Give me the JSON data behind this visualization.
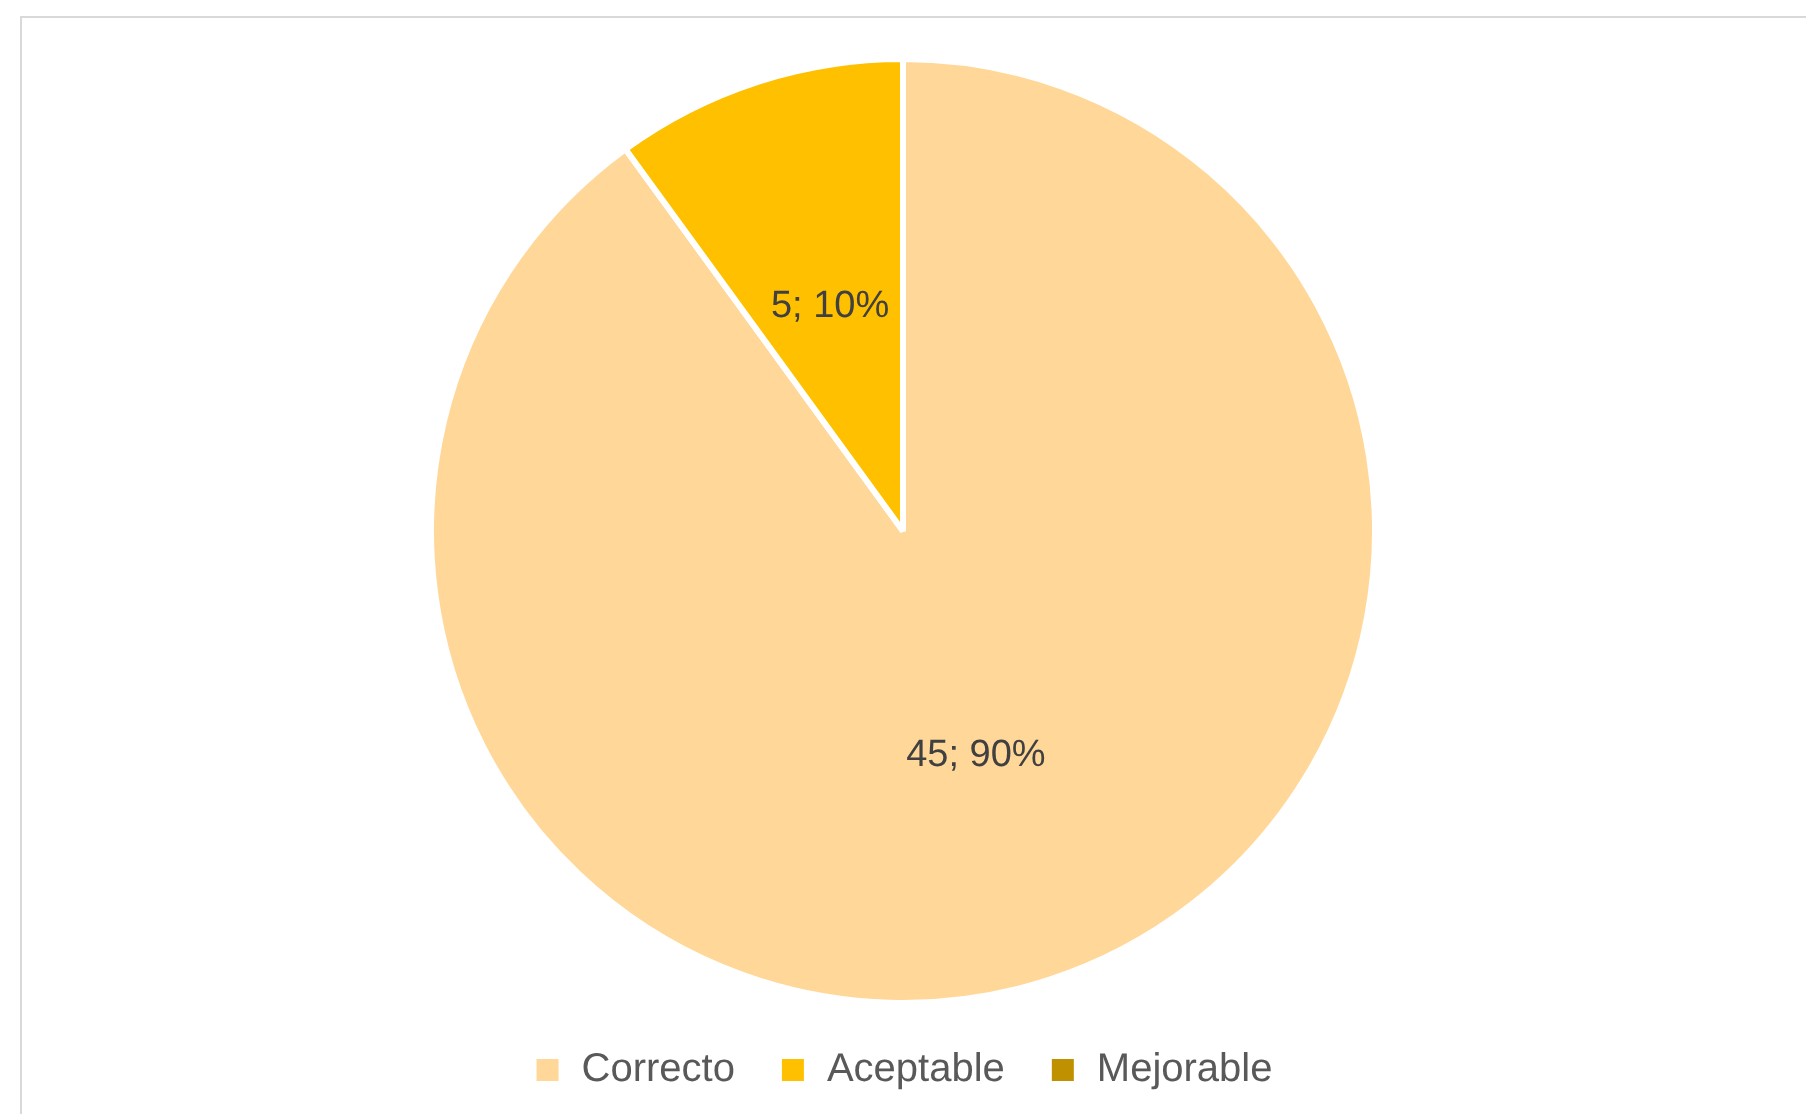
{
  "chart_data": {
    "type": "pie",
    "categories": [
      "Correcto",
      "Aceptable",
      "Mejorable"
    ],
    "values": [
      45,
      5,
      0
    ],
    "colors": [
      "#ffd899",
      "#ffc000",
      "#bf9000"
    ],
    "value_labels": [
      "45; 90%",
      "5; 10%",
      null
    ],
    "legend": "bottom"
  }
}
